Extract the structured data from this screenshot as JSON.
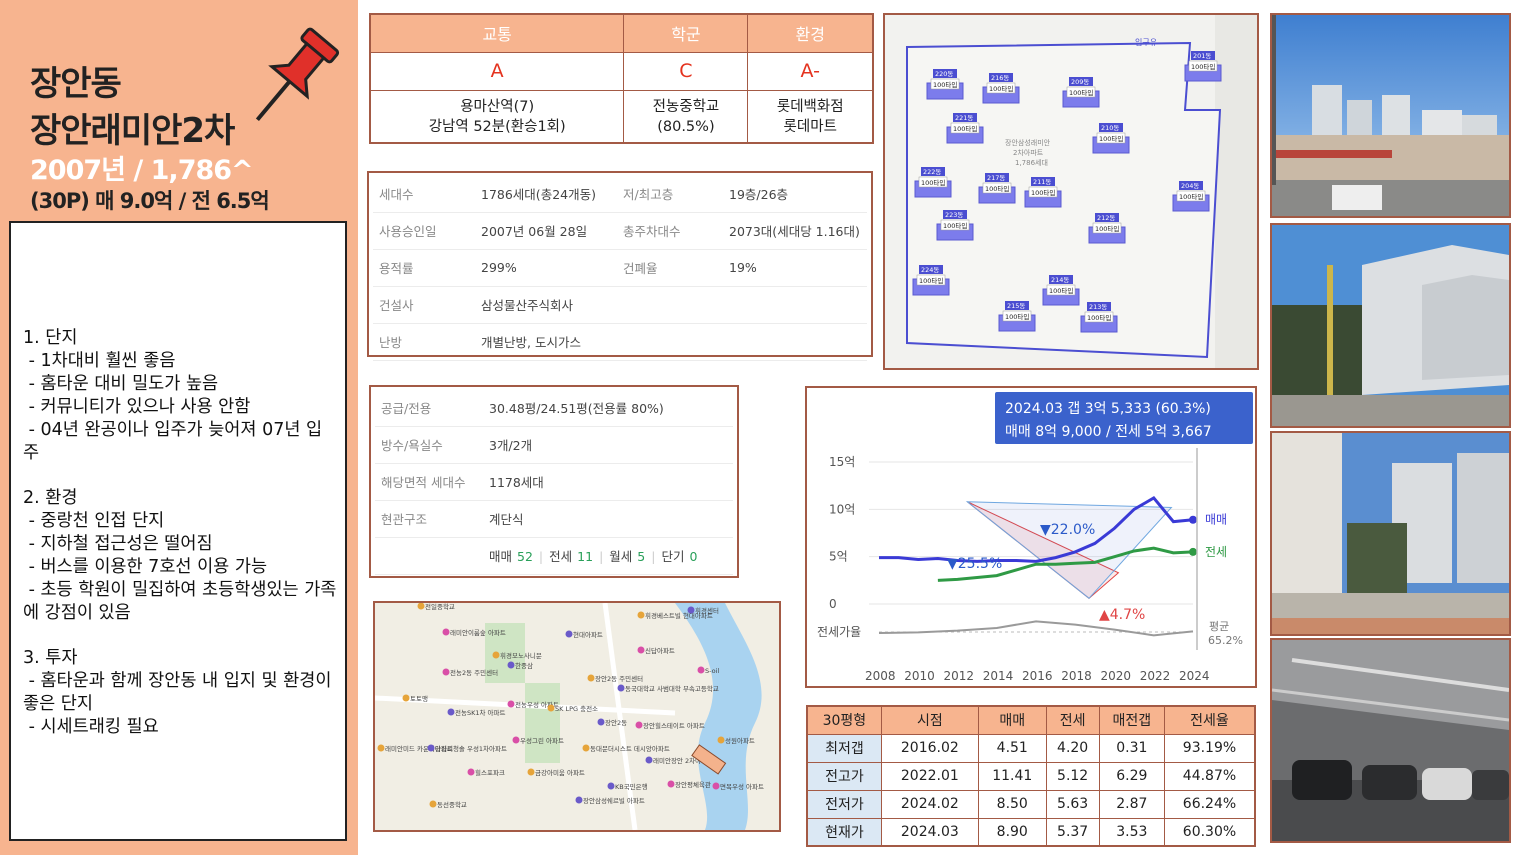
{
  "header": {
    "title1": "장안동",
    "title2": "장안래미안2차",
    "title3": "2007년 / 1,786^",
    "title4": "(30P) 매 9.0억 / 전 6.5억"
  },
  "notes": [
    "1. 단지",
    " - 1차대비 훨씬 좋음",
    " - 홈타운 대비 밀도가 높음",
    " - 커뮤니티가 있으나 사용 안함",
    " - 04년 완공이나 입주가 늦어져 07년 입주",
    "",
    "2. 환경",
    " - 중랑천 인접 단지",
    " - 지하철 접근성은 떨어짐",
    " - 버스를 이용한 7호선 이용 가능",
    " - 초등 학원이 밀집하여 초등학생있는 가족에 강점이 있음",
    "",
    "3. 투자",
    " - 홈타운과 함께 장안동 내 입지 및 환경이 좋은 단지",
    " - 시세트래킹 필요"
  ],
  "grades": {
    "headers": [
      "교통",
      "학군",
      "환경"
    ],
    "grades": [
      "A",
      "C",
      "A-"
    ],
    "details": [
      [
        "용마산역(7)",
        "강남역 52분(환승1회)"
      ],
      [
        "전농중학교",
        "(80.5%)"
      ],
      [
        "롯데백화점",
        "롯데마트"
      ]
    ]
  },
  "info1": [
    [
      "세대수",
      "1786세대(총24개동)",
      "저/최고층",
      "19층/26층"
    ],
    [
      "사용승인일",
      "2007년 06월 28일",
      "총주차대수",
      "2073대(세대당 1.16대)"
    ],
    [
      "용적률",
      "299%",
      "건폐율",
      "19%"
    ],
    [
      "건설사",
      "삼성물산주식회사",
      "",
      ""
    ],
    [
      "난방",
      "개별난방, 도시가스",
      "",
      ""
    ]
  ],
  "info2": {
    "rows": [
      [
        "공급/전용",
        "30.48평/24.51평(전용률 80%)"
      ],
      [
        "방수/욕실수",
        "3개/2개"
      ],
      [
        "해당면적 세대수",
        "1178세대"
      ],
      [
        "현관구조",
        "계단식"
      ]
    ],
    "deals": [
      {
        "label": "매매",
        "count": "52"
      },
      {
        "label": "전세",
        "count": "11"
      },
      {
        "label": "월세",
        "count": "5"
      },
      {
        "label": "단기",
        "count": "0"
      }
    ]
  },
  "site_map": {
    "entrance_label": "입구유",
    "center_label_1": "장안삼성래미안",
    "center_label_2": "2차아파트",
    "center_label_3": "1,786세대",
    "buildings": [
      {
        "dong": "201동",
        "type": "100타입"
      },
      {
        "dong": "204동",
        "type": "100타입"
      },
      {
        "dong": "209동",
        "type": "100타입"
      },
      {
        "dong": "210동",
        "type": "100타입"
      },
      {
        "dong": "211동",
        "type": "100타입"
      },
      {
        "dong": "212동",
        "type": "100타입"
      },
      {
        "dong": "213동",
        "type": "100타입"
      },
      {
        "dong": "214동",
        "type": "100타입"
      },
      {
        "dong": "215동",
        "type": "100타입"
      },
      {
        "dong": "216동",
        "type": "100타입"
      },
      {
        "dong": "217동",
        "type": "100타입"
      },
      {
        "dong": "220동",
        "type": "100타입"
      },
      {
        "dong": "221동",
        "type": "100타입"
      },
      {
        "dong": "222동",
        "type": "100타입"
      },
      {
        "dong": "223동",
        "type": "100타입"
      },
      {
        "dong": "224동",
        "type": "100타입"
      }
    ]
  },
  "area_map": {
    "labels": [
      "전일중학교",
      "현대아파트",
      "래미안이룸숲 아파트",
      "휘경베스트빌 현대아파트",
      "휘경센터",
      "신답아파트",
      "휘경모노사니문",
      "한중삼",
      "전농2동 주민센터",
      "장안2동 주민센터",
      "동국대학교 사범대학 부속고등학교",
      "S-oil",
      "토토맹",
      "전농SK1차 아파트",
      "전농우성 아파트",
      "SK LPG 충전소",
      "장안2동",
      "장안힐스테이트 아파트",
      "래미안미드 카운티아파트",
      "답십리청솔 우성1차아파트",
      "우성그린 아파트",
      "동대문더시스트 데시앙아파트",
      "래미안장안 2차아파트",
      "힐스포파크",
      "금강아미움 아파트",
      "KB국민은행",
      "장안평체육관",
      "동선중학교",
      "장안삼성쉐르빌 아파트",
      "면목우성 아파트",
      "성원아파트"
    ]
  },
  "chart_data": {
    "type": "line",
    "title": "",
    "callout_line1": "2024.03  갭 3억 5,333 (60.3%)",
    "callout_line2": "매매 8억 9,000 / 전세 5억 3,667",
    "x_ticks": [
      "2008",
      "2010",
      "2012",
      "2014",
      "2016",
      "2018",
      "2020",
      "2022",
      "2024"
    ],
    "y_ticks": [
      "15억",
      "10억",
      "5억",
      "0"
    ],
    "ylim": [
      0,
      15
    ],
    "jeonse_rate_label": "전세가율",
    "avg_label": "평균",
    "avg_value": "65.2%",
    "annotations": [
      "▼25.5%",
      "▼22.0%",
      "▲4.7%"
    ],
    "series": [
      {
        "name": "매매",
        "color": "#3a3ad6",
        "x": [
          2008.0,
          2009.0,
          2010.0,
          2011.0,
          2012.0,
          2013.0,
          2014.0,
          2015.0,
          2016.0,
          2017.0,
          2018.0,
          2019.0,
          2020.0,
          2021.0,
          2022.0,
          2023.0,
          2024.0
        ],
        "values": [
          4.9,
          4.9,
          4.7,
          4.8,
          4.6,
          4.5,
          4.6,
          4.6,
          4.5,
          4.9,
          5.5,
          6.4,
          8.0,
          10.0,
          11.2,
          8.7,
          8.9
        ]
      },
      {
        "name": "전세",
        "color": "#2f9a45",
        "x": [
          2011.0,
          2012.0,
          2013.0,
          2014.0,
          2015.0,
          2016.0,
          2017.0,
          2018.0,
          2019.0,
          2020.0,
          2021.0,
          2022.0,
          2023.0,
          2024.0
        ],
        "values": [
          2.5,
          2.6,
          2.8,
          3.0,
          3.6,
          4.2,
          4.2,
          4.3,
          4.4,
          5.0,
          5.6,
          5.9,
          5.4,
          5.5
        ]
      },
      {
        "name": "전세가율",
        "x": [
          2008.0,
          2010.0,
          2012.0,
          2014.0,
          2016.0,
          2018.0,
          2020.0,
          2022.0,
          2024.0
        ],
        "values": [
          55,
          57,
          62,
          70,
          90,
          80,
          65,
          48,
          60
        ]
      }
    ]
  },
  "price_table": {
    "headers": [
      "30평형",
      "시점",
      "매매",
      "전세",
      "매전갭",
      "전세율"
    ],
    "rows": [
      [
        "최저갭",
        "2016.02",
        "4.51",
        "4.20",
        "0.31",
        "93.19%"
      ],
      [
        "전고가",
        "2022.01",
        "11.41",
        "5.12",
        "6.29",
        "44.87%"
      ],
      [
        "전저가",
        "2024.02",
        "8.50",
        "5.63",
        "2.87",
        "66.24%"
      ],
      [
        "현재가",
        "2024.03",
        "8.90",
        "5.37",
        "3.53",
        "60.30%"
      ]
    ]
  }
}
